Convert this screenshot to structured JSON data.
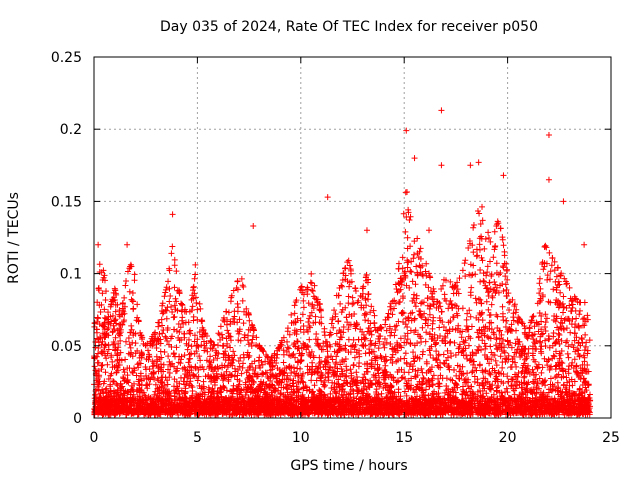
{
  "chart_data": {
    "type": "scatter",
    "title": "Day 035 of 2024, Rate Of TEC Index for receiver p050",
    "xlabel": "GPS time / hours",
    "ylabel": "ROTI / TECUs",
    "xlim": [
      0,
      25
    ],
    "ylim": [
      0,
      0.25
    ],
    "xticks": [
      0,
      5,
      10,
      15,
      20,
      25
    ],
    "xtick_labels": [
      "0",
      "5",
      "10",
      "15",
      "20",
      "25"
    ],
    "yticks": [
      0,
      0.05,
      0.1,
      0.15,
      0.2,
      0.25
    ],
    "ytick_labels": [
      "0",
      "0.05",
      "0.1",
      "0.15",
      "0.2",
      "0.25"
    ],
    "grid": true,
    "marker": "+",
    "color": "#ff0000",
    "series": [
      {
        "name": "ROTI",
        "data_range": [
          0,
          24
        ],
        "envelope": [
          [
            0.0,
            0.06
          ],
          [
            0.3,
            0.11
          ],
          [
            0.5,
            0.1
          ],
          [
            0.7,
            0.07
          ],
          [
            1.0,
            0.09
          ],
          [
            1.3,
            0.07
          ],
          [
            1.6,
            0.1
          ],
          [
            1.9,
            0.11
          ],
          [
            2.2,
            0.06
          ],
          [
            2.5,
            0.05
          ],
          [
            3.0,
            0.06
          ],
          [
            3.5,
            0.09
          ],
          [
            3.8,
            0.12
          ],
          [
            4.2,
            0.08
          ],
          [
            4.6,
            0.07
          ],
          [
            4.9,
            0.1
          ],
          [
            5.3,
            0.06
          ],
          [
            5.8,
            0.05
          ],
          [
            6.3,
            0.07
          ],
          [
            6.8,
            0.09
          ],
          [
            7.1,
            0.1
          ],
          [
            7.5,
            0.07
          ],
          [
            8.0,
            0.05
          ],
          [
            8.5,
            0.04
          ],
          [
            9.0,
            0.05
          ],
          [
            9.5,
            0.07
          ],
          [
            10.0,
            0.09
          ],
          [
            10.5,
            0.1
          ],
          [
            10.9,
            0.08
          ],
          [
            11.3,
            0.05
          ],
          [
            11.8,
            0.09
          ],
          [
            12.3,
            0.11
          ],
          [
            12.8,
            0.08
          ],
          [
            13.2,
            0.1
          ],
          [
            13.7,
            0.06
          ],
          [
            14.2,
            0.07
          ],
          [
            14.7,
            0.1
          ],
          [
            15.1,
            0.16
          ],
          [
            15.4,
            0.13
          ],
          [
            15.8,
            0.12
          ],
          [
            16.2,
            0.1
          ],
          [
            16.6,
            0.08
          ],
          [
            17.0,
            0.1
          ],
          [
            17.4,
            0.09
          ],
          [
            17.8,
            0.1
          ],
          [
            18.3,
            0.13
          ],
          [
            18.7,
            0.15
          ],
          [
            19.2,
            0.12
          ],
          [
            19.6,
            0.14
          ],
          [
            20.0,
            0.1
          ],
          [
            20.5,
            0.07
          ],
          [
            21.0,
            0.06
          ],
          [
            21.4,
            0.08
          ],
          [
            21.8,
            0.12
          ],
          [
            22.2,
            0.11
          ],
          [
            22.6,
            0.1
          ],
          [
            23.0,
            0.09
          ],
          [
            23.4,
            0.08
          ],
          [
            23.8,
            0.08
          ],
          [
            24.0,
            0.05
          ]
        ],
        "outliers": [
          [
            0.2,
            0.12
          ],
          [
            1.6,
            0.12
          ],
          [
            3.8,
            0.141
          ],
          [
            4.9,
            0.106
          ],
          [
            7.7,
            0.133
          ],
          [
            11.3,
            0.153
          ],
          [
            13.2,
            0.13
          ],
          [
            15.1,
            0.199
          ],
          [
            15.5,
            0.18
          ],
          [
            16.2,
            0.13
          ],
          [
            16.8,
            0.213
          ],
          [
            16.8,
            0.175
          ],
          [
            18.2,
            0.175
          ],
          [
            18.6,
            0.177
          ],
          [
            19.8,
            0.168
          ],
          [
            22.0,
            0.196
          ],
          [
            22.0,
            0.165
          ],
          [
            22.7,
            0.15
          ],
          [
            23.7,
            0.12
          ]
        ]
      }
    ]
  }
}
